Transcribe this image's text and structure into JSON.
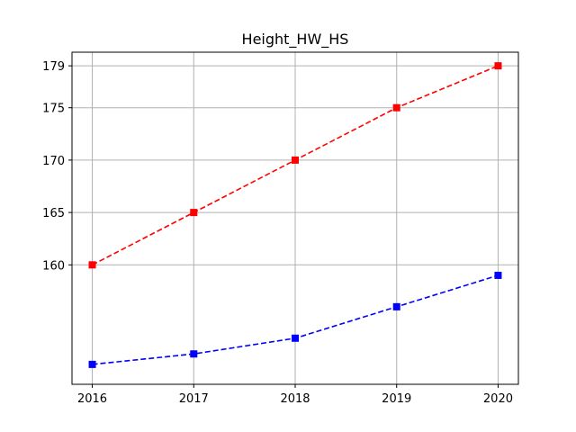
{
  "chart_data": {
    "type": "line",
    "title": "Height_HW_HS",
    "xlabel": "",
    "ylabel": "",
    "x": [
      2016,
      2017,
      2018,
      2019,
      2020
    ],
    "x_ticks": [
      "2016",
      "2017",
      "2018",
      "2019",
      "2020"
    ],
    "y_ticks": [
      160,
      165,
      170,
      175,
      179
    ],
    "y_tick_labels": [
      "160",
      "165",
      "170",
      "175",
      "179"
    ],
    "xlim": [
      2015.8,
      2020.2
    ],
    "ylim": [
      148.6,
      180.3
    ],
    "grid": true,
    "series": [
      {
        "values": [
          160,
          165,
          170,
          175,
          179
        ],
        "color": "#ff0000",
        "line_style": "dashed",
        "marker": "square"
      },
      {
        "values": [
          150.5,
          151.5,
          153,
          156,
          159
        ],
        "color": "#0000ff",
        "line_style": "dashed",
        "marker": "square"
      }
    ]
  }
}
